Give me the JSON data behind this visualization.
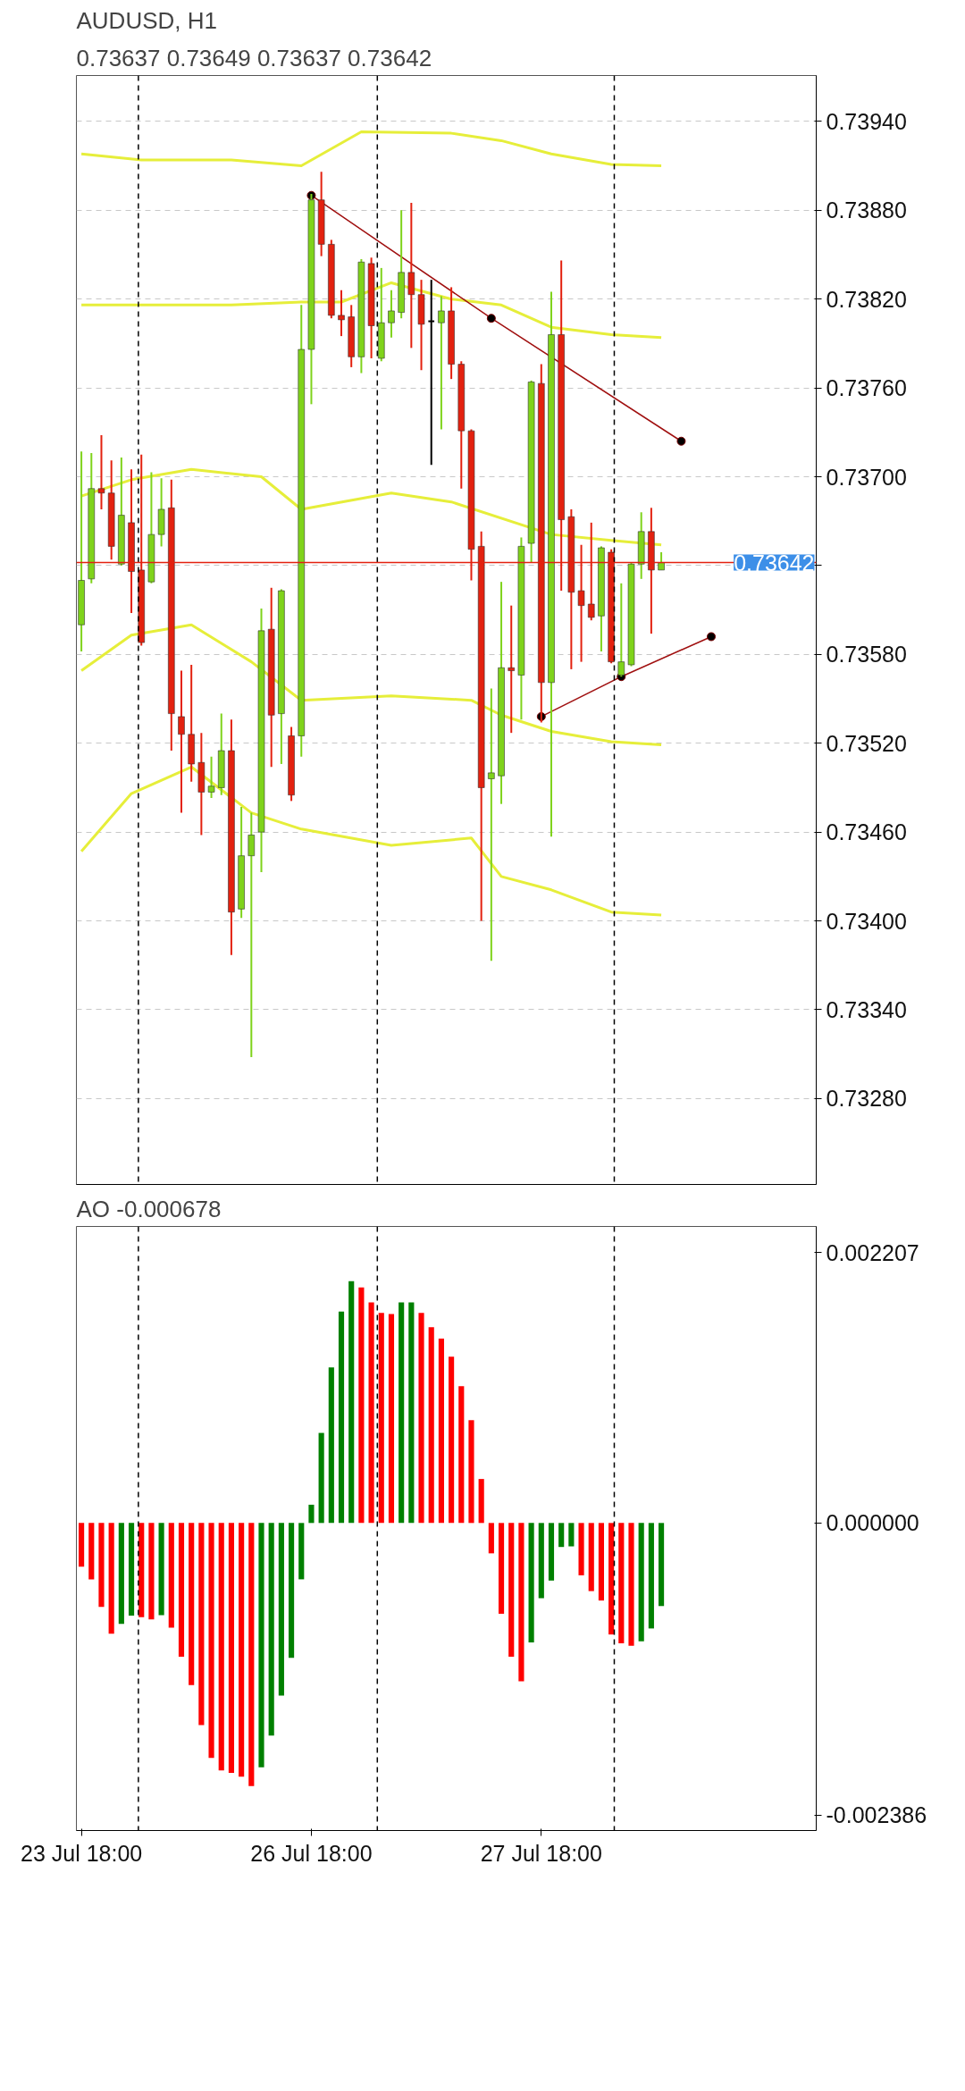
{
  "chart_data": [
    {
      "type": "candlestick",
      "title": "AUDUSD, H1",
      "subtitle": "0.73637 0.73649 0.73637 0.73642",
      "categories": [
        null,
        null,
        null,
        null,
        null,
        null,
        null,
        null,
        null,
        null,
        null,
        null,
        null,
        null,
        null,
        null,
        null,
        null,
        null,
        null,
        null,
        null,
        null,
        null,
        null,
        null,
        null,
        null,
        null,
        null,
        null,
        null,
        null,
        null,
        null,
        null,
        null,
        null,
        null,
        null,
        null,
        null,
        null,
        null,
        null,
        null,
        null,
        null,
        null,
        null,
        null,
        null,
        null,
        null,
        null,
        null,
        null,
        null,
        null,
        null,
        null,
        null,
        null,
        null,
        null,
        null,
        null,
        null,
        null,
        null,
        null,
        null,
        null,
        null
      ],
      "ohlc": [
        [
          0.736,
          0.73717,
          0.73582,
          0.7363
        ],
        [
          0.73631,
          0.73716,
          0.73628,
          0.73692
        ],
        [
          0.73692,
          0.73728,
          0.73678,
          0.73689
        ],
        [
          0.73689,
          0.73711,
          0.73644,
          0.73653
        ],
        [
          0.73641,
          0.73713,
          0.7364,
          0.73674
        ],
        [
          0.73669,
          0.73705,
          0.73608,
          0.73636
        ],
        [
          0.73637,
          0.73715,
          0.73586,
          0.73588
        ],
        [
          0.73629,
          0.73703,
          0.73628,
          0.73661
        ],
        [
          0.73661,
          0.73699,
          0.73653,
          0.73678
        ],
        [
          0.73679,
          0.73698,
          0.73515,
          0.7354
        ],
        [
          0.73538,
          0.73569,
          0.73473,
          0.73526
        ],
        [
          0.73526,
          0.73573,
          0.73494,
          0.73506
        ],
        [
          0.73507,
          0.73527,
          0.73458,
          0.73487
        ],
        [
          0.73487,
          0.73511,
          0.73483,
          0.73491
        ],
        [
          0.7349,
          0.7354,
          0.73485,
          0.73515
        ],
        [
          0.73515,
          0.73536,
          0.73377,
          0.73406
        ],
        [
          0.73408,
          0.73477,
          0.73402,
          0.73444
        ],
        [
          0.73444,
          0.73473,
          0.73308,
          0.73458
        ],
        [
          0.7346,
          0.73611,
          0.73433,
          0.73596
        ],
        [
          0.73597,
          0.73625,
          0.73504,
          0.73539
        ],
        [
          0.7354,
          0.73624,
          0.73506,
          0.73623
        ],
        [
          0.73525,
          0.73531,
          0.73481,
          0.73485
        ],
        [
          0.73525,
          0.73816,
          0.73511,
          0.73786
        ],
        [
          0.73786,
          0.73891,
          0.73749,
          0.73887
        ],
        [
          0.73887,
          0.73906,
          0.73849,
          0.73857
        ],
        [
          0.73857,
          0.7386,
          0.73807,
          0.73809
        ],
        [
          0.73809,
          0.73826,
          0.73795,
          0.73806
        ],
        [
          0.73808,
          0.73816,
          0.73774,
          0.73781
        ],
        [
          0.73781,
          0.73847,
          0.7377,
          0.73845
        ],
        [
          0.73844,
          0.73848,
          0.7378,
          0.73802
        ],
        [
          0.7378,
          0.73841,
          0.73778,
          0.73804
        ],
        [
          0.73804,
          0.73826,
          0.73794,
          0.73812
        ],
        [
          0.73811,
          0.7388,
          0.73807,
          0.73838
        ],
        [
          0.73838,
          0.73885,
          0.73787,
          0.73823
        ],
        [
          0.73823,
          0.73833,
          0.73772,
          0.73803
        ],
        [
          0.73805,
          0.73833,
          0.73708,
          0.73805
        ],
        [
          0.73804,
          0.73822,
          0.73732,
          0.73812
        ],
        [
          0.73812,
          0.73828,
          0.73766,
          0.73776
        ],
        [
          0.73776,
          0.73778,
          0.73692,
          0.73731
        ],
        [
          0.73731,
          0.73732,
          0.7363,
          0.73651
        ],
        [
          0.73653,
          0.73663,
          0.734,
          0.7349
        ],
        [
          0.73496,
          0.73557,
          0.73373,
          0.735
        ],
        [
          0.73498,
          0.73629,
          0.73479,
          0.73571
        ],
        [
          0.73571,
          0.73613,
          0.73527,
          0.73569
        ],
        [
          0.73566,
          0.73659,
          0.73536,
          0.73653
        ],
        [
          0.73655,
          0.73765,
          0.73642,
          0.73764
        ],
        [
          0.73763,
          0.73776,
          0.73534,
          0.73561
        ],
        [
          0.73561,
          0.73825,
          0.73457,
          0.73796
        ],
        [
          0.73796,
          0.73846,
          0.73623,
          0.73671
        ],
        [
          0.73673,
          0.73678,
          0.7357,
          0.73622
        ],
        [
          0.73623,
          0.73654,
          0.73575,
          0.73613
        ],
        [
          0.73614,
          0.73669,
          0.73603,
          0.73605
        ],
        [
          0.73606,
          0.73653,
          0.73582,
          0.73652
        ],
        [
          0.73649,
          0.73651,
          0.73574,
          0.73575
        ],
        [
          0.73566,
          0.73628,
          0.73565,
          0.73575
        ],
        [
          0.73573,
          0.73642,
          0.73572,
          0.73641
        ],
        [
          0.73641,
          0.73676,
          0.73631,
          0.73663
        ],
        [
          0.73663,
          0.73679,
          0.73594,
          0.73637
        ],
        [
          0.73637,
          0.73649,
          0.73637,
          0.73642
        ],
        null,
        null,
        null,
        null,
        null,
        null,
        null,
        null,
        null,
        null,
        null,
        null,
        null,
        null,
        null
      ],
      "colors": [
        "#7fd31b",
        "#7fd31b",
        "#e3210f",
        "#e3210f",
        "#7fd31b",
        "#e3210f",
        "#e3210f",
        "#7fd31b",
        "#7fd31b",
        "#e3210f",
        "#e3210f",
        "#e3210f",
        "#e3210f",
        "#7fd31b",
        "#7fd31b",
        "#e3210f",
        "#7fd31b",
        "#7fd31b",
        "#7fd31b",
        "#e3210f",
        "#7fd31b",
        "#e3210f",
        "#7fd31b",
        "#7fd31b",
        "#e3210f",
        "#e3210f",
        "#e3210f",
        "#e3210f",
        "#7fd31b",
        "#e3210f",
        "#7fd31b",
        "#7fd31b",
        "#7fd31b",
        "#e3210f",
        "#e3210f",
        "#000000",
        "#7fd31b",
        "#e3210f",
        "#e3210f",
        "#e3210f",
        "#e3210f",
        "#7fd31b",
        "#7fd31b",
        "#e3210f",
        "#7fd31b",
        "#7fd31b",
        "#e3210f",
        "#7fd31b",
        "#e3210f",
        "#e3210f",
        "#e3210f",
        "#e3210f",
        "#7fd31b",
        "#e3210f",
        "#7fd31b",
        "#7fd31b",
        "#7fd31b",
        "#e3210f",
        "#7fd31b",
        null,
        null,
        null,
        null,
        null,
        null,
        null,
        null,
        null,
        null,
        null,
        null,
        null,
        null,
        null
      ],
      "series": [
        {
          "type": "line",
          "color": "#e6ee3a",
          "values": [
            0.73918,
            null,
            null,
            null,
            null,
            null,
            0.73914,
            null,
            null,
            null,
            null,
            null,
            null,
            null,
            null,
            0.73914,
            null,
            null,
            null,
            null,
            null,
            null,
            0.7391,
            null,
            null,
            null,
            null,
            null,
            0.73933,
            null,
            null,
            null,
            null,
            null,
            null,
            null,
            null,
            0.73932,
            null,
            null,
            null,
            null,
            0.73927,
            null,
            null,
            null,
            null,
            0.73918,
            null,
            null,
            null,
            null,
            null,
            0.73911,
            null,
            null,
            null,
            null,
            0.7391,
            null,
            null,
            null,
            null,
            null,
            null,
            null,
            null,
            null,
            null,
            null,
            null,
            null,
            null,
            null
          ]
        },
        {
          "type": "line",
          "color": "#e6ee3a",
          "values": [
            0.73816,
            null,
            null,
            null,
            null,
            null,
            null,
            0.73816,
            null,
            null,
            null,
            null,
            null,
            null,
            null,
            0.73816,
            null,
            null,
            null,
            null,
            null,
            null,
            0.73818,
            null,
            null,
            null,
            0.73818,
            null,
            null,
            null,
            null,
            0.73831,
            null,
            null,
            null,
            null,
            null,
            0.7382,
            null,
            null,
            null,
            null,
            0.73816,
            null,
            null,
            null,
            null,
            0.73801,
            null,
            null,
            null,
            null,
            null,
            0.73796,
            null,
            null,
            null,
            null,
            0.73794,
            null,
            null,
            null,
            null,
            null,
            null,
            null,
            null,
            null,
            null,
            null,
            null,
            null,
            null,
            null
          ]
        },
        {
          "type": "line",
          "color": "#e6ee3a",
          "values": [
            0.73687,
            null,
            null,
            null,
            null,
            0.73698,
            null,
            null,
            null,
            null,
            null,
            0.73705,
            null,
            null,
            null,
            null,
            null,
            null,
            0.737,
            null,
            null,
            null,
            0.73678,
            null,
            null,
            null,
            null,
            null,
            null,
            null,
            null,
            0.73689,
            null,
            null,
            null,
            null,
            null,
            0.73683,
            null,
            null,
            null,
            null,
            null,
            null,
            null,
            null,
            null,
            0.73661,
            null,
            null,
            null,
            null,
            null,
            0.73657,
            null,
            null,
            null,
            null,
            0.73654,
            null,
            null,
            null,
            null,
            null,
            null,
            null,
            null,
            null,
            null,
            null,
            null,
            null,
            null,
            null
          ]
        },
        {
          "type": "line",
          "color": "#e6ee3a",
          "values": [
            0.73569,
            null,
            null,
            null,
            null,
            0.73593,
            null,
            null,
            null,
            null,
            null,
            0.736,
            null,
            null,
            null,
            null,
            null,
            0.73575,
            null,
            null,
            null,
            null,
            0.73549,
            null,
            null,
            null,
            null,
            null,
            null,
            null,
            null,
            0.73552,
            null,
            null,
            null,
            null,
            null,
            null,
            null,
            0.73549,
            null,
            null,
            0.73539,
            null,
            null,
            null,
            null,
            0.73528,
            null,
            null,
            null,
            null,
            null,
            0.73521,
            null,
            null,
            null,
            null,
            0.73519,
            null,
            null,
            null,
            null,
            null,
            null,
            null,
            null,
            null,
            null,
            null,
            null,
            null,
            null,
            null
          ]
        },
        {
          "type": "line",
          "color": "#e6ee3a",
          "values": [
            0.73447,
            null,
            null,
            null,
            null,
            0.73486,
            null,
            null,
            null,
            null,
            null,
            0.73504,
            null,
            null,
            null,
            null,
            null,
            0.73473,
            null,
            null,
            null,
            null,
            0.73462,
            null,
            null,
            null,
            null,
            null,
            null,
            null,
            null,
            0.73451,
            null,
            null,
            null,
            null,
            null,
            null,
            null,
            0.73456,
            null,
            null,
            0.7343,
            null,
            null,
            null,
            null,
            0.73421,
            null,
            null,
            null,
            null,
            null,
            0.73406,
            null,
            null,
            null,
            null,
            0.73404,
            null,
            null,
            null,
            null,
            null,
            null,
            null,
            null,
            null,
            null,
            null,
            null,
            null,
            null,
            null
          ]
        },
        {
          "type": "line",
          "color": "#a01010",
          "marker": "circle",
          "values": [
            null,
            null,
            null,
            null,
            null,
            null,
            null,
            null,
            null,
            null,
            null,
            null,
            null,
            null,
            null,
            null,
            null,
            null,
            null,
            null,
            null,
            null,
            null,
            0.7389,
            null,
            null,
            null,
            null,
            null,
            null,
            null,
            null,
            null,
            null,
            null,
            null,
            null,
            null,
            null,
            null,
            null,
            0.73807,
            null,
            null,
            null,
            null,
            null,
            null,
            null,
            null,
            null,
            null,
            null,
            null,
            null,
            null,
            null,
            null,
            null,
            null,
            0.73724,
            null,
            null,
            null,
            null,
            null,
            null,
            null,
            null,
            null,
            null,
            null,
            null,
            null
          ]
        },
        {
          "type": "line",
          "color": "#a01010",
          "marker": "circle",
          "values": [
            null,
            null,
            null,
            null,
            null,
            null,
            null,
            null,
            null,
            null,
            null,
            null,
            null,
            null,
            null,
            null,
            null,
            null,
            null,
            null,
            null,
            null,
            null,
            null,
            null,
            null,
            null,
            null,
            null,
            null,
            null,
            null,
            null,
            null,
            null,
            null,
            null,
            null,
            null,
            null,
            null,
            null,
            null,
            null,
            null,
            null,
            0.73538,
            null,
            null,
            null,
            null,
            null,
            null,
            null,
            0.73565,
            null,
            null,
            null,
            null,
            null,
            null,
            null,
            null,
            0.73592,
            null,
            null,
            null,
            null,
            null,
            null,
            null,
            null,
            null,
            null
          ]
        }
      ],
      "ylim": [
        0.73222,
        0.73971
      ],
      "yticks": [
        {
          "value": 0.7328,
          "label": "0.73280"
        },
        {
          "value": 0.7334,
          "label": "0.73340"
        },
        {
          "value": 0.734,
          "label": "0.73400"
        },
        {
          "value": 0.7346,
          "label": "0.73460"
        },
        {
          "value": 0.7352,
          "label": "0.73520"
        },
        {
          "value": 0.7358,
          "label": "0.73580"
        },
        {
          "value": 0.7364,
          "label": null
        },
        {
          "value": 0.737,
          "label": "0.73700"
        },
        {
          "value": 0.7376,
          "label": "0.73760"
        },
        {
          "value": 0.7382,
          "label": "0.73820"
        },
        {
          "value": 0.7388,
          "label": "0.73880"
        },
        {
          "value": 0.7394,
          "label": "0.73940"
        }
      ],
      "tick_labels": "y",
      "grid": "y",
      "ref_lines": [
        {
          "axis": "y",
          "value": 0.73642,
          "label": "0.73642",
          "color": "#e3210f"
        }
      ]
    },
    {
      "type": "bar",
      "title": "AO -0.000678",
      "categories": [
        "23 Jul 18:00",
        null,
        null,
        null,
        null,
        null,
        null,
        null,
        null,
        null,
        null,
        null,
        null,
        null,
        null,
        null,
        null,
        null,
        null,
        null,
        null,
        null,
        null,
        "26 Jul 18:00",
        null,
        null,
        null,
        null,
        null,
        null,
        null,
        null,
        null,
        null,
        null,
        null,
        null,
        null,
        null,
        null,
        null,
        null,
        null,
        null,
        null,
        null,
        "27 Jul 18:00",
        null,
        null,
        null,
        null,
        null,
        null,
        null,
        null,
        null,
        null,
        null,
        null,
        null,
        null,
        null,
        null,
        null,
        null,
        null,
        null,
        null,
        null,
        null,
        null,
        null,
        null,
        null
      ],
      "values": [
        -0.000356,
        -0.00046,
        -0.000685,
        -0.000904,
        -0.000824,
        -0.000756,
        -0.000768,
        -0.000787,
        -0.000752,
        -0.000855,
        -0.001092,
        -0.001323,
        -0.001649,
        -0.001917,
        -0.002019,
        -0.00204,
        -0.002071,
        -0.002148,
        -0.001994,
        -0.001736,
        -0.001409,
        -0.001101,
        -0.00046,
        0.000149,
        0.000735,
        0.00127,
        0.001726,
        0.001973,
        0.001923,
        0.0018,
        0.001714,
        0.001705,
        0.0018,
        0.0018,
        0.001714,
        0.001597,
        0.001505,
        0.001357,
        0.001117,
        0.000839,
        0.000359,
        -0.000248,
        -0.000741,
        -0.001092,
        -0.001292,
        -0.000975,
        -0.000614,
        -0.00047,
        -0.000196,
        -0.000191,
        -0.000427,
        -0.000556,
        -0.000633,
        -0.00091,
        -0.000982,
        -0.001003,
        -0.000966,
        -0.000861,
        -0.000678,
        null,
        null,
        null,
        null,
        null,
        null,
        null,
        null,
        null,
        null,
        null,
        null,
        null,
        null,
        null
      ],
      "colors": [
        "#ff0000",
        "#ff0000",
        "#ff0000",
        "#ff0000",
        "#008000",
        "#008000",
        "#ff0000",
        "#ff0000",
        "#008000",
        "#ff0000",
        "#ff0000",
        "#ff0000",
        "#ff0000",
        "#ff0000",
        "#ff0000",
        "#ff0000",
        "#ff0000",
        "#ff0000",
        "#008000",
        "#008000",
        "#008000",
        "#008000",
        "#008000",
        "#008000",
        "#008000",
        "#008000",
        "#008000",
        "#008000",
        "#ff0000",
        "#ff0000",
        "#ff0000",
        "#ff0000",
        "#008000",
        "#008000",
        "#ff0000",
        "#ff0000",
        "#ff0000",
        "#ff0000",
        "#ff0000",
        "#ff0000",
        "#ff0000",
        "#ff0000",
        "#ff0000",
        "#ff0000",
        "#ff0000",
        "#008000",
        "#008000",
        "#008000",
        "#008000",
        "#008000",
        "#ff0000",
        "#ff0000",
        "#ff0000",
        "#ff0000",
        "#ff0000",
        "#ff0000",
        "#008000",
        "#008000",
        "#008000",
        null,
        null,
        null,
        null,
        null,
        null,
        null,
        null,
        null,
        null,
        null,
        null,
        null,
        null,
        null
      ],
      "ylim": [
        -0.00251,
        0.00242
      ],
      "yticks": [
        {
          "value": -0.002386,
          "label": "-0.002386"
        },
        {
          "value": 0,
          "label": "0.000000"
        },
        {
          "value": 0.002207,
          "label": "0.002207"
        }
      ]
    }
  ]
}
